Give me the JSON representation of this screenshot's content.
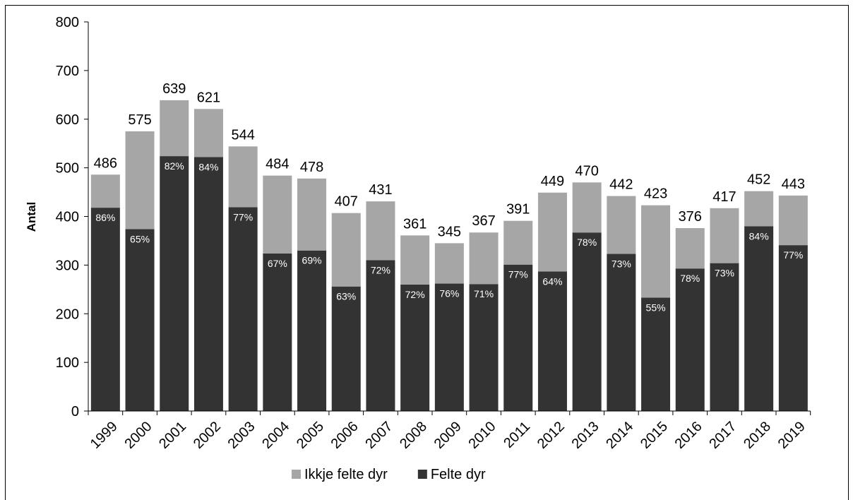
{
  "chart_data": {
    "type": "bar",
    "stacked": true,
    "categories": [
      "1999",
      "2000",
      "2001",
      "2002",
      "2003",
      "2004",
      "2005",
      "2006",
      "2007",
      "2008",
      "2009",
      "2010",
      "2011",
      "2012",
      "2013",
      "2014",
      "2015",
      "2016",
      "2017",
      "2018",
      "2019"
    ],
    "series": [
      {
        "name": "Felte dyr",
        "color": "#333333",
        "values": [
          418,
          374,
          524,
          522,
          419,
          324,
          330,
          256,
          310,
          260,
          262,
          261,
          301,
          287,
          367,
          323,
          233,
          293,
          304,
          380,
          341
        ],
        "pct_labels": [
          "86%",
          "65%",
          "82%",
          "84%",
          "77%",
          "67%",
          "69%",
          "63%",
          "72%",
          "72%",
          "76%",
          "71%",
          "77%",
          "64%",
          "78%",
          "73%",
          "55%",
          "78%",
          "73%",
          "84%",
          "77%"
        ]
      },
      {
        "name": "Ikkje felte dyr",
        "color": "#a6a6a6",
        "values": [
          68,
          201,
          115,
          99,
          125,
          160,
          148,
          151,
          121,
          101,
          83,
          106,
          90,
          162,
          103,
          119,
          190,
          83,
          113,
          72,
          102
        ]
      }
    ],
    "totals": [
      486,
      575,
      639,
      621,
      544,
      484,
      478,
      407,
      431,
      361,
      345,
      367,
      391,
      449,
      470,
      442,
      423,
      376,
      417,
      452,
      443
    ],
    "title": "",
    "xlabel": "",
    "ylabel": "Antal",
    "ylim": [
      0,
      800
    ],
    "yticks": [
      0,
      100,
      200,
      300,
      400,
      500,
      600,
      700,
      800
    ],
    "grid": false,
    "legend_position": "bottom",
    "legend_order": [
      "Ikkje felte dyr",
      "Felte dyr"
    ]
  }
}
